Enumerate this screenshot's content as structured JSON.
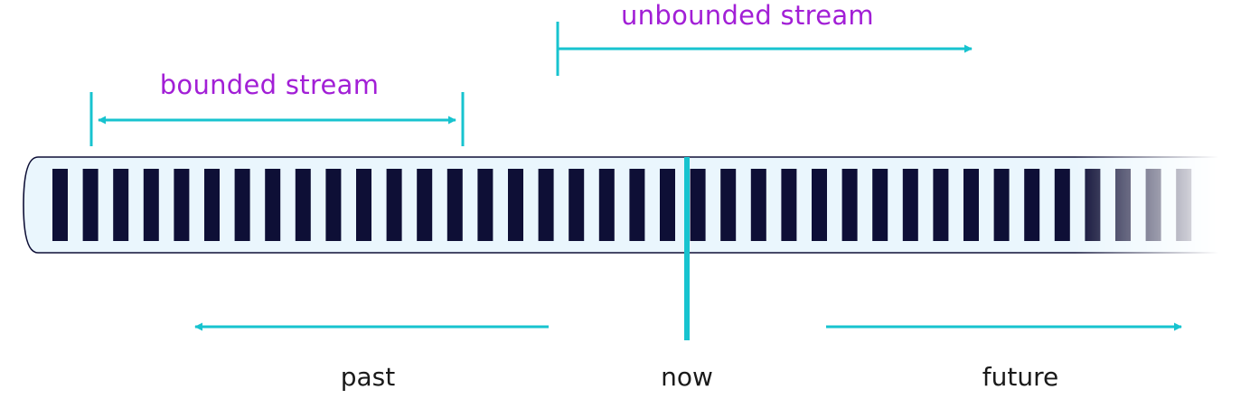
{
  "labels": {
    "bounded_stream": "bounded stream",
    "unbounded_stream": "unbounded stream",
    "past": "past",
    "now": "now",
    "future": "future"
  },
  "stream": {
    "event_count": 38
  },
  "colors": {
    "accent": "#17c3cf",
    "label_purple": "#a21fd6",
    "event_bar": "#0e0f36",
    "tube_fill": "#eaf6fd",
    "tube_border": "#0e0f36",
    "text": "#1a1a1a"
  }
}
